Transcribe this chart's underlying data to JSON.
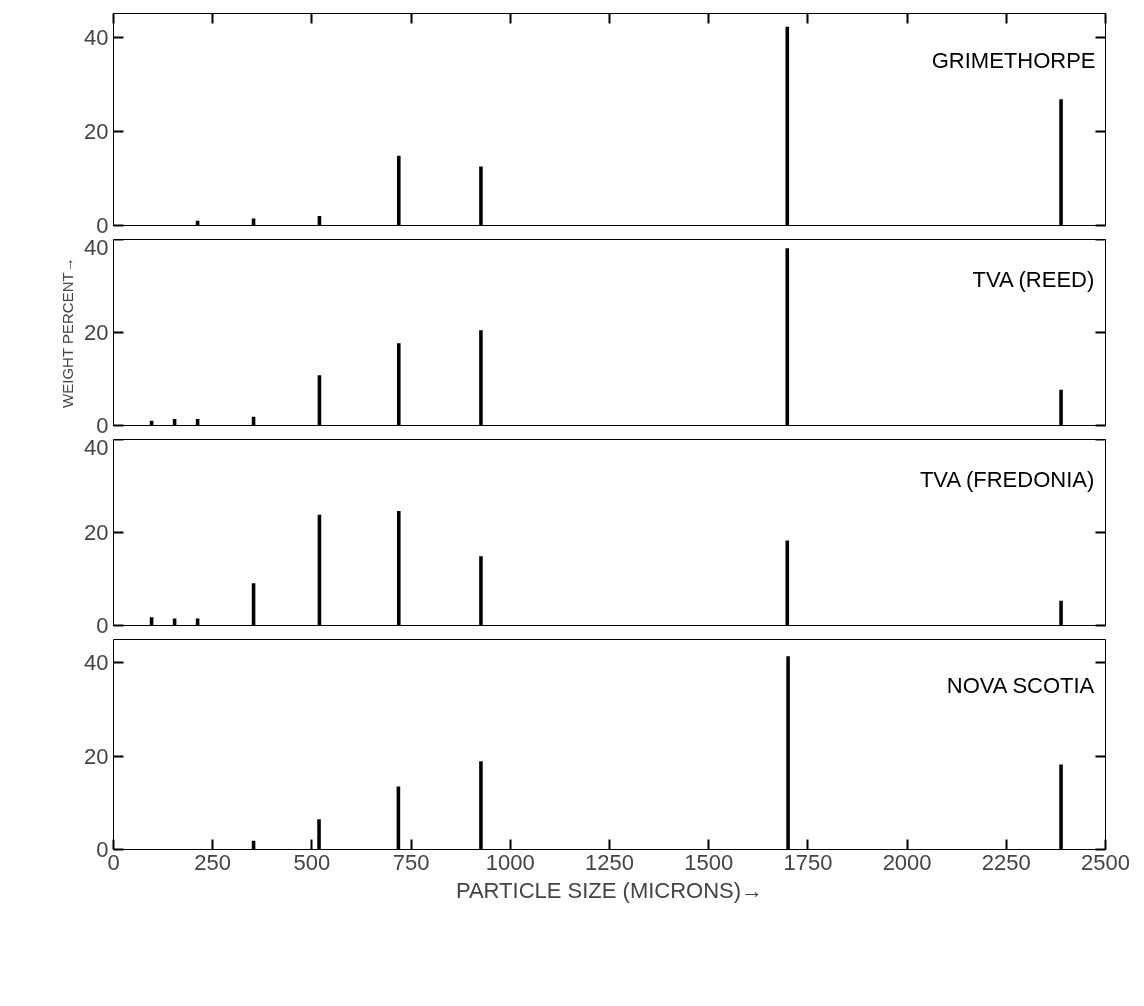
{
  "chart_data": [
    {
      "type": "bar",
      "title": "GRIMETHORPE",
      "x": [
        212,
        353,
        519,
        719,
        926,
        1698,
        2388
      ],
      "values": [
        1,
        1.5,
        2,
        14.8,
        12.5,
        42.2,
        26.8
      ],
      "color": "#000000",
      "xlim": [
        0,
        2500
      ],
      "xticks": [
        0,
        250,
        500,
        750,
        1000,
        1250,
        1500,
        1750,
        2000,
        2250,
        2500
      ],
      "ylim": [
        0,
        45
      ],
      "yticks": [
        0,
        20,
        40
      ],
      "tick_labels": "y",
      "grid": false
    },
    {
      "type": "bar",
      "title": "TVA (REED)",
      "ylabel": "WEIGHT PERCENT→",
      "x": [
        96,
        154,
        212,
        353,
        519,
        719,
        926,
        1698,
        2388
      ],
      "values": [
        1,
        1.4,
        1.4,
        1.9,
        10.8,
        17.7,
        20.5,
        38.1,
        7.7
      ],
      "color": "#000000",
      "xlim": [
        0,
        2500
      ],
      "ylim": [
        0,
        40
      ],
      "yticks": [
        0,
        20,
        40
      ],
      "tick_labels": "y",
      "grid": false
    },
    {
      "type": "bar",
      "title": "TVA (FREDONIA)",
      "x": [
        96,
        154,
        212,
        353,
        519,
        719,
        926,
        1698,
        2388
      ],
      "values": [
        1.8,
        1.5,
        1.5,
        9.1,
        23.8,
        24.6,
        14.9,
        18.3,
        5.3
      ],
      "color": "#000000",
      "xlim": [
        0,
        2500
      ],
      "ylim": [
        0,
        40
      ],
      "yticks": [
        0,
        20,
        40
      ],
      "tick_labels": "y",
      "grid": false
    },
    {
      "type": "bar",
      "title": "NOVA SCOTIA",
      "xlabel": "PARTICLE SIZE (MICRONS)→",
      "x": [
        353,
        518,
        718,
        926,
        1700,
        2388
      ],
      "values": [
        1.9,
        6.5,
        13.5,
        18.9,
        41.4,
        18.2
      ],
      "color": "#000000",
      "xlim": [
        0,
        2500
      ],
      "xticks": [
        0,
        250,
        500,
        750,
        1000,
        1250,
        1500,
        1750,
        2000,
        2250,
        2500
      ],
      "ylim": [
        0,
        45
      ],
      "yticks": [
        0,
        20,
        40
      ],
      "grid": false
    }
  ]
}
